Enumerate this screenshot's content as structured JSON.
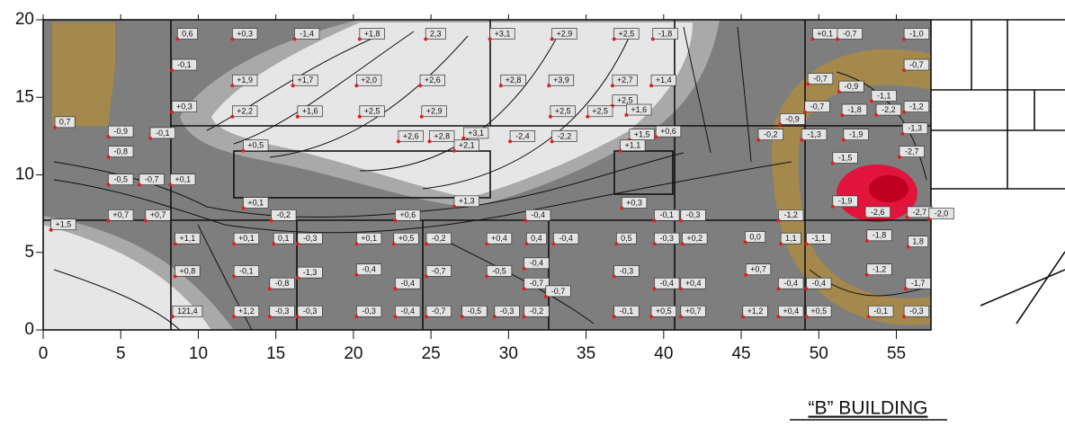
{
  "chart_data": {
    "type": "contour",
    "title": "“B” BUILDING",
    "xlim": [
      0,
      57
    ],
    "ylim": [
      0,
      20
    ],
    "xticks": [
      0,
      5,
      10,
      15,
      20,
      25,
      30,
      35,
      40,
      45,
      50,
      55
    ],
    "yticks": [
      0,
      5,
      10,
      15,
      20
    ],
    "point_color": "#e02020",
    "points": [
      {
        "x": 9.3,
        "y": 19.1,
        "value": 0.6,
        "label": "0,6"
      },
      {
        "x": 13.0,
        "y": 19.1,
        "value": 0.3,
        "label": "+0,3"
      },
      {
        "x": 17.0,
        "y": 19.1,
        "value": -1.4,
        "label": "-1,4"
      },
      {
        "x": 21.2,
        "y": 19.1,
        "value": 1.8,
        "label": "+1,8"
      },
      {
        "x": 25.3,
        "y": 19.1,
        "value": 2.3,
        "label": "2,3"
      },
      {
        "x": 29.6,
        "y": 19.1,
        "value": 3.1,
        "label": "+3,1"
      },
      {
        "x": 33.6,
        "y": 19.1,
        "value": 2.9,
        "label": "+2,9"
      },
      {
        "x": 37.6,
        "y": 19.1,
        "value": 2.5,
        "label": "+2,5"
      },
      {
        "x": 40.1,
        "y": 19.1,
        "value": -1.8,
        "label": "-1,8"
      },
      {
        "x": 50.4,
        "y": 19.1,
        "value": 0.1,
        "label": "+0,1"
      },
      {
        "x": 52.0,
        "y": 19.1,
        "value": -0.7,
        "label": "-0,7"
      },
      {
        "x": 56.3,
        "y": 19.1,
        "value": -1.0,
        "label": "-1,0"
      },
      {
        "x": 9.1,
        "y": 17.1,
        "value": -0.1,
        "label": "-0,1"
      },
      {
        "x": 56.3,
        "y": 17.1,
        "value": -0.7,
        "label": "-0,7"
      },
      {
        "x": 13.0,
        "y": 16.1,
        "value": 1.9,
        "label": "+1,9"
      },
      {
        "x": 16.9,
        "y": 16.1,
        "value": 1.7,
        "label": "+1,7"
      },
      {
        "x": 21.0,
        "y": 16.1,
        "value": 2.0,
        "label": "+2,0"
      },
      {
        "x": 25.1,
        "y": 16.1,
        "value": 2.6,
        "label": "+2,6"
      },
      {
        "x": 30.3,
        "y": 16.1,
        "value": 2.8,
        "label": "+2,8"
      },
      {
        "x": 33.4,
        "y": 16.1,
        "value": 3.9,
        "label": "+3,9"
      },
      {
        "x": 37.5,
        "y": 16.1,
        "value": 2.7,
        "label": "+2,7"
      },
      {
        "x": 40.0,
        "y": 16.1,
        "value": 1.4,
        "label": "+1,4"
      },
      {
        "x": 50.1,
        "y": 16.2,
        "value": -0.7,
        "label": "-0,7"
      },
      {
        "x": 52.1,
        "y": 15.7,
        "value": -0.9,
        "label": "-0,9"
      },
      {
        "x": 54.2,
        "y": 15.1,
        "value": -1.1,
        "label": "-1,1"
      },
      {
        "x": 9.1,
        "y": 14.4,
        "value": 0.3,
        "label": "+0,3"
      },
      {
        "x": 37.5,
        "y": 14.8,
        "value": 2.5,
        "label": "+2,5"
      },
      {
        "x": 38.4,
        "y": 14.2,
        "value": 1.6,
        "label": "+1,6"
      },
      {
        "x": 49.9,
        "y": 14.4,
        "value": -0.7,
        "label": "-0,7"
      },
      {
        "x": 52.3,
        "y": 14.2,
        "value": -1.8,
        "label": "-1,8"
      },
      {
        "x": 54.5,
        "y": 14.2,
        "value": -2.2,
        "label": "-2,2"
      },
      {
        "x": 56.3,
        "y": 14.4,
        "value": -1.2,
        "label": "-1,2"
      },
      {
        "x": 13.0,
        "y": 14.1,
        "value": 2.2,
        "label": "+2,2"
      },
      {
        "x": 17.2,
        "y": 14.1,
        "value": 1.6,
        "label": "+1,6"
      },
      {
        "x": 21.2,
        "y": 14.1,
        "value": 2.5,
        "label": "+2,5"
      },
      {
        "x": 25.2,
        "y": 14.1,
        "value": 2.9,
        "label": "+2,9"
      },
      {
        "x": 33.5,
        "y": 14.1,
        "value": 2.5,
        "label": "+2,5"
      },
      {
        "x": 35.9,
        "y": 14.1,
        "value": 2.5,
        "label": "+2,5"
      },
      {
        "x": 48.3,
        "y": 13.6,
        "value": -0.9,
        "label": "-0,9"
      },
      {
        "x": 56.2,
        "y": 13.0,
        "value": -1.3,
        "label": "-1,3"
      },
      {
        "x": 1.4,
        "y": 13.4,
        "value": 0.7,
        "label": "0,7"
      },
      {
        "x": 5.0,
        "y": 12.8,
        "value": -0.9,
        "label": "-0,9"
      },
      {
        "x": 7.7,
        "y": 12.7,
        "value": -0.1,
        "label": "-0,1"
      },
      {
        "x": 5.0,
        "y": 11.5,
        "value": -0.8,
        "label": "-0,8"
      },
      {
        "x": 23.7,
        "y": 12.5,
        "value": 2.6,
        "label": "+2,6"
      },
      {
        "x": 25.7,
        "y": 12.5,
        "value": 2.8,
        "label": "+2,8"
      },
      {
        "x": 27.9,
        "y": 12.7,
        "value": 3.1,
        "label": "+3,1"
      },
      {
        "x": 30.9,
        "y": 12.5,
        "value": -2.4,
        "label": "-2,4"
      },
      {
        "x": 33.6,
        "y": 12.5,
        "value": -2.2,
        "label": "-2,2"
      },
      {
        "x": 27.3,
        "y": 11.9,
        "value": 2.1,
        "label": "+2,1"
      },
      {
        "x": 13.7,
        "y": 11.9,
        "value": 0.5,
        "label": "+0,5"
      },
      {
        "x": 38.6,
        "y": 12.6,
        "value": 1.5,
        "label": "+1,5"
      },
      {
        "x": 40.3,
        "y": 12.8,
        "value": 0.6,
        "label": "+0,6"
      },
      {
        "x": 38.0,
        "y": 11.9,
        "value": 1.1,
        "label": "+1,1"
      },
      {
        "x": 46.9,
        "y": 12.6,
        "value": -0.2,
        "label": "-0,2"
      },
      {
        "x": 49.7,
        "y": 12.6,
        "value": -1.3,
        "label": "-1,3"
      },
      {
        "x": 52.4,
        "y": 12.6,
        "value": -1.9,
        "label": "-1,9"
      },
      {
        "x": 56.0,
        "y": 11.5,
        "value": -2.7,
        "label": "-2,7"
      },
      {
        "x": 51.7,
        "y": 11.1,
        "value": -1.5,
        "label": "-1,5"
      },
      {
        "x": 5.0,
        "y": 9.7,
        "value": -0.5,
        "label": "-0,5"
      },
      {
        "x": 7.0,
        "y": 9.7,
        "value": -0.7,
        "label": "-0,7"
      },
      {
        "x": 9.0,
        "y": 9.7,
        "value": 0.1,
        "label": "+0,1"
      },
      {
        "x": 13.7,
        "y": 8.2,
        "value": 0.1,
        "label": "+0,1"
      },
      {
        "x": 27.3,
        "y": 8.3,
        "value": 1.3,
        "label": "+1,3"
      },
      {
        "x": 38.1,
        "y": 8.2,
        "value": 0.3,
        "label": "+0,3"
      },
      {
        "x": 51.7,
        "y": 8.3,
        "value": -1.9,
        "label": "-1,9"
      },
      {
        "x": 53.8,
        "y": 7.6,
        "value": -2.6,
        "label": "-2,6"
      },
      {
        "x": 56.5,
        "y": 7.6,
        "value": -2.7,
        "label": "-2,7"
      },
      {
        "x": 57.9,
        "y": 7.5,
        "value": -2.0,
        "label": "-2,0"
      },
      {
        "x": 48.2,
        "y": 7.4,
        "value": -1.2,
        "label": "-1,2"
      },
      {
        "x": 1.3,
        "y": 6.8,
        "value": 1.5,
        "label": "+1,5"
      },
      {
        "x": 5.0,
        "y": 7.4,
        "value": 0.7,
        "label": "+0,7"
      },
      {
        "x": 7.4,
        "y": 7.4,
        "value": 0.7,
        "label": "+0,7"
      },
      {
        "x": 15.5,
        "y": 7.4,
        "value": -0.2,
        "label": "-0,2"
      },
      {
        "x": 23.5,
        "y": 7.4,
        "value": 0.6,
        "label": "+0,6"
      },
      {
        "x": 31.9,
        "y": 7.4,
        "value": -0.4,
        "label": "-0,4"
      },
      {
        "x": 40.2,
        "y": 7.4,
        "value": -0.1,
        "label": "-0,1"
      },
      {
        "x": 41.9,
        "y": 7.4,
        "value": -0.3,
        "label": "-0,3"
      },
      {
        "x": 9.3,
        "y": 5.9,
        "value": 1.1,
        "label": "+1,1"
      },
      {
        "x": 13.1,
        "y": 5.9,
        "value": 0.1,
        "label": "+0,1"
      },
      {
        "x": 15.5,
        "y": 5.9,
        "value": 0.1,
        "label": "0,1"
      },
      {
        "x": 17.2,
        "y": 5.9,
        "value": -0.3,
        "label": "-0,3"
      },
      {
        "x": 21.0,
        "y": 5.9,
        "value": 0.1,
        "label": "+0,1"
      },
      {
        "x": 23.4,
        "y": 5.9,
        "value": 0.5,
        "label": "+0,5"
      },
      {
        "x": 25.5,
        "y": 5.9,
        "value": -0.2,
        "label": "-0,2"
      },
      {
        "x": 29.4,
        "y": 5.9,
        "value": 0.4,
        "label": "+0,4"
      },
      {
        "x": 31.8,
        "y": 5.9,
        "value": 0.4,
        "label": "0,4"
      },
      {
        "x": 33.7,
        "y": 5.9,
        "value": -0.4,
        "label": "-0,4"
      },
      {
        "x": 37.6,
        "y": 5.9,
        "value": 0.5,
        "label": "0,5"
      },
      {
        "x": 40.2,
        "y": 5.9,
        "value": -0.3,
        "label": "-0,3"
      },
      {
        "x": 42.0,
        "y": 5.9,
        "value": 0.2,
        "label": "+0,2"
      },
      {
        "x": 45.9,
        "y": 6.0,
        "value": 0,
        "label": "0,0"
      },
      {
        "x": 48.2,
        "y": 5.9,
        "value": 1.1,
        "label": "1,1"
      },
      {
        "x": 50.0,
        "y": 5.9,
        "value": -1.1,
        "label": "-1,1"
      },
      {
        "x": 53.9,
        "y": 6.1,
        "value": -1.8,
        "label": "-1,8"
      },
      {
        "x": 56.4,
        "y": 5.7,
        "value": 1.8,
        "label": "1,8"
      },
      {
        "x": 31.8,
        "y": 4.3,
        "value": -0.4,
        "label": "-0,4"
      },
      {
        "x": 9.3,
        "y": 3.8,
        "value": 0.8,
        "label": "+0,8"
      },
      {
        "x": 13.1,
        "y": 3.8,
        "value": -0.1,
        "label": "-0,1"
      },
      {
        "x": 17.2,
        "y": 3.7,
        "value": -1.3,
        "label": "-1,3"
      },
      {
        "x": 21.0,
        "y": 3.9,
        "value": -0.4,
        "label": "-0,4"
      },
      {
        "x": 25.5,
        "y": 3.8,
        "value": -0.7,
        "label": "-0,7"
      },
      {
        "x": 29.4,
        "y": 3.8,
        "value": -0.5,
        "label": "-0,5"
      },
      {
        "x": 37.6,
        "y": 3.8,
        "value": -0.3,
        "label": "-0,3"
      },
      {
        "x": 46.1,
        "y": 3.9,
        "value": 0.7,
        "label": "+0,7"
      },
      {
        "x": 53.9,
        "y": 3.9,
        "value": -1.2,
        "label": "-1,2"
      },
      {
        "x": 15.4,
        "y": 3.0,
        "value": -0.8,
        "label": "-0,8"
      },
      {
        "x": 23.5,
        "y": 3.0,
        "value": -0.4,
        "label": "-0,4"
      },
      {
        "x": 31.8,
        "y": 3.0,
        "value": -0.7,
        "label": "-0,7"
      },
      {
        "x": 33.2,
        "y": 2.5,
        "value": -0.7,
        "label": "-0,7"
      },
      {
        "x": 40.2,
        "y": 3.0,
        "value": -0.4,
        "label": "-0,4"
      },
      {
        "x": 41.9,
        "y": 3.0,
        "value": 0.4,
        "label": "+0,4"
      },
      {
        "x": 48.2,
        "y": 3.0,
        "value": -0.4,
        "label": "-0,4"
      },
      {
        "x": 50.0,
        "y": 3.0,
        "value": -0.4,
        "label": "-0,4"
      },
      {
        "x": 56.4,
        "y": 3.0,
        "value": -1.7,
        "label": "-1,7"
      },
      {
        "x": 9.3,
        "y": 1.2,
        "value": 121.4,
        "label": "121,4"
      },
      {
        "x": 13.1,
        "y": 1.2,
        "value": 1.2,
        "label": "+1,2"
      },
      {
        "x": 15.4,
        "y": 1.2,
        "value": -0.3,
        "label": "-0,3"
      },
      {
        "x": 17.2,
        "y": 1.2,
        "value": -0.3,
        "label": "-0,3"
      },
      {
        "x": 21.0,
        "y": 1.2,
        "value": -0.3,
        "label": "-0,3"
      },
      {
        "x": 23.5,
        "y": 1.2,
        "value": -0.4,
        "label": "-0,4"
      },
      {
        "x": 25.5,
        "y": 1.2,
        "value": -0.7,
        "label": "-0,7"
      },
      {
        "x": 27.8,
        "y": 1.2,
        "value": -0.5,
        "label": "-0,5"
      },
      {
        "x": 29.9,
        "y": 1.2,
        "value": -0.3,
        "label": "-0,3"
      },
      {
        "x": 31.8,
        "y": 1.2,
        "value": -0.2,
        "label": "-0,2"
      },
      {
        "x": 37.6,
        "y": 1.2,
        "value": -0.1,
        "label": "-0,1"
      },
      {
        "x": 40.0,
        "y": 1.2,
        "value": 0.5,
        "label": "+0,5"
      },
      {
        "x": 41.9,
        "y": 1.2,
        "value": 0.7,
        "label": "+0,7"
      },
      {
        "x": 45.9,
        "y": 1.2,
        "value": 1.2,
        "label": "+1,2"
      },
      {
        "x": 48.2,
        "y": 1.2,
        "value": 0.4,
        "label": "+0,4"
      },
      {
        "x": 50.0,
        "y": 1.2,
        "value": 0.5,
        "label": "+0,5"
      },
      {
        "x": 54.0,
        "y": 1.2,
        "value": -0.1,
        "label": "-0,1"
      },
      {
        "x": 56.3,
        "y": 1.2,
        "value": -0.3,
        "label": "-0,3"
      }
    ]
  }
}
